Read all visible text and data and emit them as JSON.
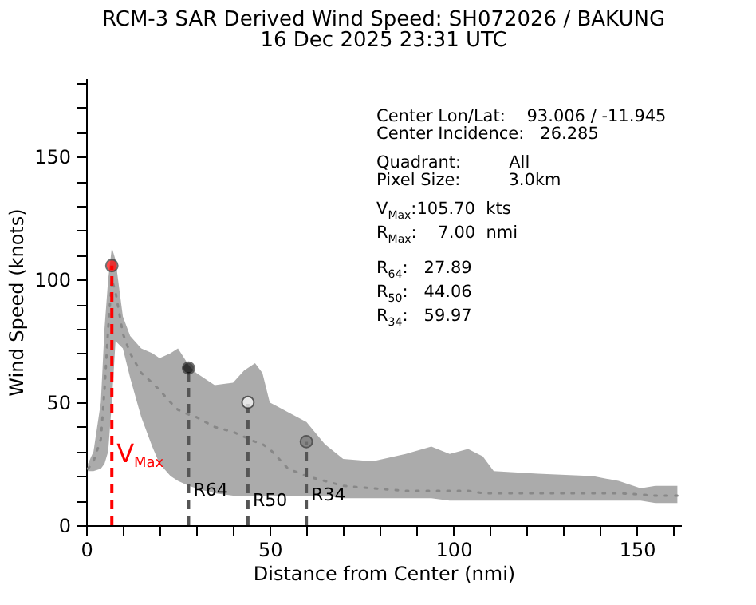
{
  "chart_data": {
    "type": "line",
    "title": "RCM-3 SAR Derived Wind Speed: SH072026 / BAKUNG",
    "subtitle": "16 Dec 2025 23:31 UTC",
    "xlabel": "Distance from Center (nmi)",
    "ylabel": "Wind Speed (knots)",
    "xlim": [
      0,
      162
    ],
    "ylim": [
      0,
      182
    ],
    "xticks": [
      0,
      {
        "value": 10,
        "label": null
      },
      {
        "value": 20,
        "label": null
      },
      {
        "value": 30,
        "label": null
      },
      {
        "value": 40,
        "label": null
      },
      50,
      {
        "value": 60,
        "label": null
      },
      {
        "value": 70,
        "label": null
      },
      {
        "value": 80,
        "label": null
      },
      {
        "value": 90,
        "label": null
      },
      100,
      {
        "value": 110,
        "label": null
      },
      {
        "value": 120,
        "label": null
      },
      {
        "value": 130,
        "label": null
      },
      {
        "value": 140,
        "label": null
      },
      150,
      {
        "value": 160,
        "label": null
      }
    ],
    "yticks": [
      0,
      {
        "value": 10,
        "label": null
      },
      {
        "value": 20,
        "label": null
      },
      {
        "value": 30,
        "label": null
      },
      {
        "value": 40,
        "label": null
      },
      50,
      {
        "value": 60,
        "label": null
      },
      {
        "value": 70,
        "label": null
      },
      {
        "value": 80,
        "label": null
      },
      {
        "value": 90,
        "label": null
      },
      100,
      {
        "value": 110,
        "label": null
      },
      {
        "value": 120,
        "label": null
      },
      {
        "value": 130,
        "label": null
      },
      {
        "value": 140,
        "label": null
      },
      150,
      {
        "value": 160,
        "label": null
      },
      {
        "value": 170,
        "label": null
      },
      {
        "value": 180,
        "label": null
      }
    ],
    "series": [
      {
        "color": "#888888",
        "line_style": "dotted",
        "x": [
          0.5,
          2,
          4,
          5,
          6,
          7,
          8,
          10,
          12,
          15,
          18,
          20,
          23,
          25,
          28,
          30,
          35,
          40,
          43,
          46,
          48,
          50,
          55,
          60,
          65,
          70,
          78,
          87,
          94,
          99,
          104,
          108,
          111,
          123,
          138,
          145,
          151,
          155,
          161
        ],
        "values": [
          23,
          26,
          35,
          55,
          80,
          100,
          95,
          78,
          70,
          62,
          58,
          55,
          50,
          47,
          45,
          44,
          40,
          38,
          36,
          34,
          33,
          31,
          23,
          20,
          18,
          16,
          15,
          14,
          14,
          14,
          14,
          13,
          13,
          13,
          13,
          13,
          12.5,
          12,
          12
        ],
        "lower": [
          22,
          22,
          23,
          25,
          30,
          50,
          75,
          72,
          60,
          44,
          32,
          25,
          20,
          18,
          16,
          15,
          13,
          12,
          12,
          12,
          12,
          12,
          12,
          12,
          12,
          11,
          11,
          11,
          11,
          10,
          10,
          10,
          10,
          10,
          10,
          10,
          10,
          9,
          9
        ],
        "upper": [
          25,
          30,
          50,
          80,
          100,
          113,
          108,
          85,
          77,
          72,
          70,
          68,
          70,
          72,
          65,
          62,
          57,
          58,
          63,
          66,
          62,
          50,
          46,
          42,
          33,
          27,
          26,
          29,
          32,
          29,
          31,
          28,
          22,
          21,
          20,
          18,
          15,
          16,
          16
        ]
      },
      {
        "type": "lollipop",
        "color": "#ff0000",
        "line_style": "dashed",
        "x": [
          7
        ],
        "values": [
          105.7
        ]
      },
      {
        "type": "lollipop",
        "color": "#555555",
        "colors": [
          "#000000",
          "#ffffff",
          "#777777"
        ],
        "line_style": "dashed",
        "x": [
          27.89,
          44.06,
          59.97
        ],
        "values": [
          64,
          50,
          34
        ]
      }
    ],
    "annotations": [
      {
        "text": "V$_{Max}$",
        "x": 7,
        "y": 29
      },
      {
        "text": "R64",
        "x": 27.89,
        "y": 14
      },
      {
        "text": "R50",
        "x": 44.06,
        "y": 9.6
      },
      {
        "text": "R34",
        "x": 59.97,
        "y": 12
      },
      "Center Lon/Lat:    93.006 / -11.945\nCenter Incidence:   26.285",
      "Quadrant:         All\nPixel Size:         3.0km",
      "V$_{Max}$:105.70  kts\nR$_{Max}$:    7.00  nmi",
      "R$_{64}$:   27.89\nR$_{50}$:   44.06\nR$_{34}$:   59.97"
    ]
  }
}
